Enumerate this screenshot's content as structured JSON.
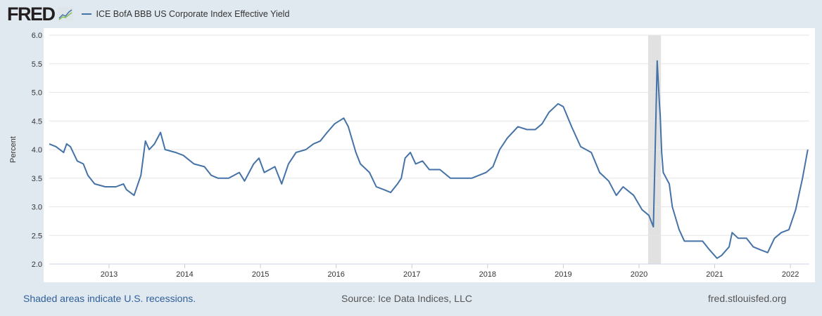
{
  "header": {
    "logo": "FRED",
    "legend_label": "ICE BofA BBB US Corporate Index Effective Yield"
  },
  "footer": {
    "recession_note": "Shaded areas indicate U.S. recessions.",
    "source": "Source: Ice Data Indices, LLC",
    "site": "fred.stlouisfed.org"
  },
  "colors": {
    "series": "#4572a7",
    "recession": "#e1e1e1",
    "grid": "#e6e6e6"
  },
  "chart_data": {
    "type": "line",
    "title": "ICE BofA BBB US Corporate Index Effective Yield",
    "xlabel": "",
    "ylabel": "Percent",
    "xlim": [
      2012.21,
      2022.25
    ],
    "ylim": [
      2.0,
      6.0
    ],
    "grid": true,
    "legend_placement": "top-left",
    "y_ticks": [
      "2.0",
      "2.5",
      "3.0",
      "3.5",
      "4.0",
      "4.5",
      "5.0",
      "5.5",
      "6.0"
    ],
    "x_ticks": [
      "2013",
      "2014",
      "2015",
      "2016",
      "2017",
      "2018",
      "2019",
      "2020",
      "2021",
      "2022"
    ],
    "recessions": [
      [
        2020.12,
        2020.29
      ]
    ],
    "series": [
      {
        "name": "ICE BofA BBB US Corporate Index Effective Yield",
        "x": [
          2012.21,
          2012.3,
          2012.4,
          2012.44,
          2012.49,
          2012.58,
          2012.66,
          2012.72,
          2012.81,
          2012.95,
          2013.09,
          2013.19,
          2013.23,
          2013.33,
          2013.42,
          2013.48,
          2013.53,
          2013.6,
          2013.68,
          2013.74,
          2013.88,
          2013.98,
          2014.12,
          2014.26,
          2014.35,
          2014.44,
          2014.58,
          2014.72,
          2014.79,
          2014.91,
          2014.98,
          2015.05,
          2015.19,
          2015.28,
          2015.37,
          2015.47,
          2015.6,
          2015.7,
          2015.79,
          2015.88,
          2015.98,
          2016.1,
          2016.16,
          2016.26,
          2016.32,
          2016.44,
          2016.53,
          2016.63,
          2016.72,
          2016.81,
          2016.86,
          2016.91,
          2016.98,
          2017.05,
          2017.14,
          2017.23,
          2017.37,
          2017.51,
          2017.65,
          2017.79,
          2017.98,
          2018.07,
          2018.16,
          2018.26,
          2018.4,
          2018.52,
          2018.63,
          2018.72,
          2018.81,
          2018.93,
          2019.0,
          2019.11,
          2019.23,
          2019.37,
          2019.48,
          2019.6,
          2019.7,
          2019.79,
          2019.93,
          2020.04,
          2020.13,
          2020.19,
          2020.21,
          2020.24,
          2020.27,
          2020.28,
          2020.3,
          2020.32,
          2020.4,
          2020.44,
          2020.53,
          2020.6,
          2020.72,
          2020.84,
          2020.93,
          2021.03,
          2021.09,
          2021.19,
          2021.23,
          2021.31,
          2021.42,
          2021.51,
          2021.6,
          2021.7,
          2021.79,
          2021.88,
          2021.98,
          2022.07,
          2022.16,
          2022.23
        ],
        "y": [
          4.1,
          4.05,
          3.95,
          4.1,
          4.05,
          3.8,
          3.75,
          3.55,
          3.4,
          3.35,
          3.35,
          3.4,
          3.3,
          3.2,
          3.55,
          4.15,
          4.0,
          4.1,
          4.3,
          4.0,
          3.95,
          3.9,
          3.75,
          3.7,
          3.55,
          3.5,
          3.5,
          3.6,
          3.45,
          3.75,
          3.85,
          3.6,
          3.7,
          3.4,
          3.75,
          3.95,
          4.0,
          4.1,
          4.15,
          4.3,
          4.45,
          4.55,
          4.4,
          3.95,
          3.75,
          3.6,
          3.35,
          3.3,
          3.25,
          3.4,
          3.5,
          3.85,
          3.95,
          3.75,
          3.8,
          3.65,
          3.65,
          3.5,
          3.5,
          3.5,
          3.6,
          3.7,
          4.0,
          4.2,
          4.4,
          4.35,
          4.35,
          4.45,
          4.65,
          4.8,
          4.75,
          4.4,
          4.05,
          3.95,
          3.6,
          3.45,
          3.2,
          3.35,
          3.2,
          2.95,
          2.85,
          2.65,
          3.8,
          5.55,
          4.8,
          4.6,
          3.95,
          3.6,
          3.4,
          3.0,
          2.6,
          2.4,
          2.4,
          2.4,
          2.25,
          2.1,
          2.15,
          2.3,
          2.55,
          2.45,
          2.45,
          2.3,
          2.25,
          2.2,
          2.45,
          2.55,
          2.6,
          2.95,
          3.5,
          4.0
        ]
      }
    ]
  }
}
